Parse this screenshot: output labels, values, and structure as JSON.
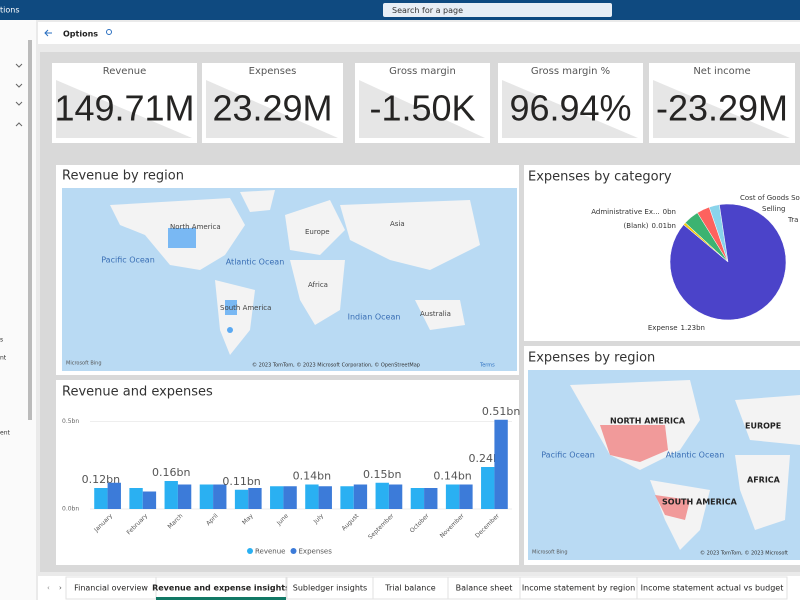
{
  "app": {
    "title_fragment": "tions",
    "search": "Search for a page",
    "page_header": "Options"
  },
  "left_nav": [
    "s",
    "nt",
    "ent"
  ],
  "kpis": [
    {
      "label": "Revenue",
      "value": "149.71M"
    },
    {
      "label": "Expenses",
      "value": "23.29M"
    },
    {
      "label": "Gross margin",
      "value": "-1.50K"
    },
    {
      "label": "Gross margin %",
      "value": "96.94%"
    },
    {
      "label": "Net income",
      "value": "-23.29M"
    }
  ],
  "revenue_map": {
    "title": "Revenue by region",
    "labels": [
      "North America",
      "Europe",
      "Asia",
      "Pacific Ocean",
      "Atlantic Ocean",
      "Africa",
      "South America",
      "Indian Ocean",
      "Australia"
    ],
    "attribution": "© 2023 TomTom, © 2023 Microsoft Corporation, © OpenStreetMap",
    "terms": "Terms",
    "logo": "Microsoft Bing"
  },
  "expenses_pie": {
    "type": "pie",
    "title": "Expenses by category",
    "names": [
      "(Blank)",
      "Administrative Ex...",
      "Cost of Goods So",
      "Selling",
      "Tra",
      "Expense"
    ],
    "values": [
      0.01,
      0,
      0.06,
      0.05,
      0.04,
      1.23
    ],
    "value_labels": [
      "0.01bn",
      "0bn",
      null,
      null,
      null,
      "1.23bn"
    ],
    "colors": [
      "#f2c80f",
      "#a66999",
      "#3cb371",
      "#fd625e",
      "#8ad4eb",
      "#4b43c9"
    ]
  },
  "expenses_map": {
    "title": "Expenses by region",
    "labels": [
      "NORTH AMERICA",
      "EUROPE",
      "Pacific Ocean",
      "Atlantic Ocean",
      "AFRICA",
      "SOUTH AMERICA"
    ],
    "attribution": "© 2023 TomTom, © 2023 Microsoft",
    "logo": "Microsoft Bing"
  },
  "revenue_and_expenses": {
    "type": "bar",
    "title": "Revenue and expenses",
    "categories": [
      "January",
      "February",
      "March",
      "April",
      "May",
      "June",
      "July",
      "August",
      "September",
      "October",
      "November",
      "December"
    ],
    "ylim": [
      0,
      0.56
    ],
    "yticks": [
      {
        "value": 0,
        "label": "0.0bn"
      },
      {
        "value": 0.5,
        "label": "0.5bn"
      }
    ],
    "series": [
      {
        "name": "Revenue",
        "color": "#2ab0f2",
        "values": [
          0.12,
          0.12,
          0.16,
          0.14,
          0.11,
          0.13,
          0.14,
          0.13,
          0.15,
          0.12,
          0.14,
          0.24
        ],
        "value_labels": [
          "0.12bn",
          null,
          "0.16bn",
          null,
          "0.11bn",
          null,
          "0.14bn",
          null,
          "0.15bn",
          null,
          "0.14bn",
          "0.24bn"
        ]
      },
      {
        "name": "Expenses",
        "color": "#3c7bd9",
        "values": [
          0.15,
          0.1,
          0.14,
          0.14,
          0.12,
          0.13,
          0.13,
          0.14,
          0.14,
          0.12,
          0.14,
          0.51
        ],
        "value_labels": [
          null,
          null,
          null,
          null,
          null,
          null,
          null,
          null,
          null,
          null,
          null,
          "0.51bn"
        ]
      }
    ]
  },
  "tabs": [
    "Financial overview",
    "Revenue and expense insights",
    "Subledger insights",
    "Trial balance",
    "Balance sheet",
    "Income statement by region",
    "Income statement actual vs budget"
  ],
  "active_tab": 1
}
